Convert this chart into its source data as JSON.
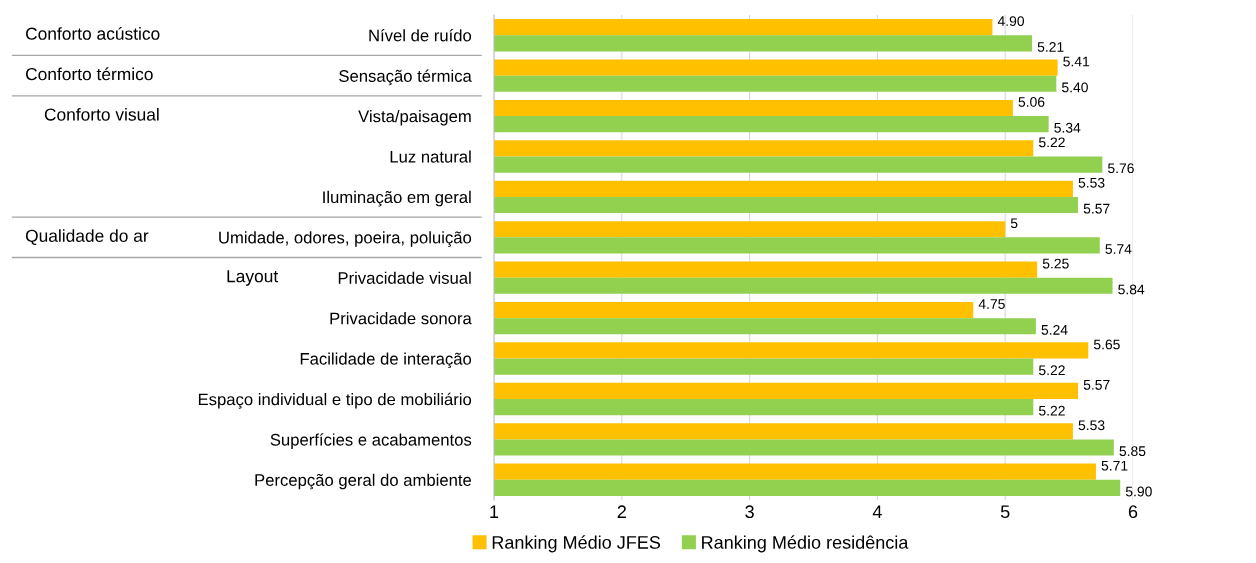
{
  "chart_data": {
    "type": "bar",
    "orientation": "horizontal",
    "categories": [
      "Nível de ruído",
      "Sensação térmica",
      "Vista/paisagem",
      "Luz natural",
      "Iluminação em geral",
      "Umidade, odores, poeira, poluição",
      "Privacidade visual",
      "Privacidade sonora",
      "Facilidade de interação",
      "Espaço individual e tipo de mobiliário",
      "Superfícies e acabamentos",
      "Percepção geral do ambiente"
    ],
    "series": [
      {
        "name": "Ranking Médio JFES",
        "color": "#ffc000",
        "values": [
          4.9,
          5.41,
          5.06,
          5.22,
          5.53,
          5,
          5.25,
          4.75,
          5.65,
          5.57,
          5.53,
          5.71
        ],
        "value_labels": [
          "4.90",
          "5.41",
          "5.06",
          "5.22",
          "5.53",
          "5",
          "5.25",
          "4.75",
          "5.65",
          "5.57",
          "5.53",
          "5.71"
        ]
      },
      {
        "name": "Ranking Médio residência",
        "color": "#92d050",
        "values": [
          5.21,
          5.4,
          5.34,
          5.76,
          5.57,
          5.74,
          5.84,
          5.24,
          5.22,
          5.22,
          5.85,
          5.9
        ],
        "value_labels": [
          "5.21",
          "5.40",
          "5.34",
          "5.76",
          "5.57",
          "5.74",
          "5.84",
          "5.24",
          "5.22",
          "5.22",
          "5.85",
          "5.90"
        ]
      }
    ],
    "xlim": [
      1,
      6
    ],
    "xticks": [
      1,
      2,
      3,
      4,
      5,
      6
    ],
    "grid": "x",
    "legend": "bottom",
    "annotations": [
      "Conforto acústico",
      "Conforto térmico",
      "Conforto visual",
      "Qualidade do ar",
      "Layout"
    ]
  }
}
